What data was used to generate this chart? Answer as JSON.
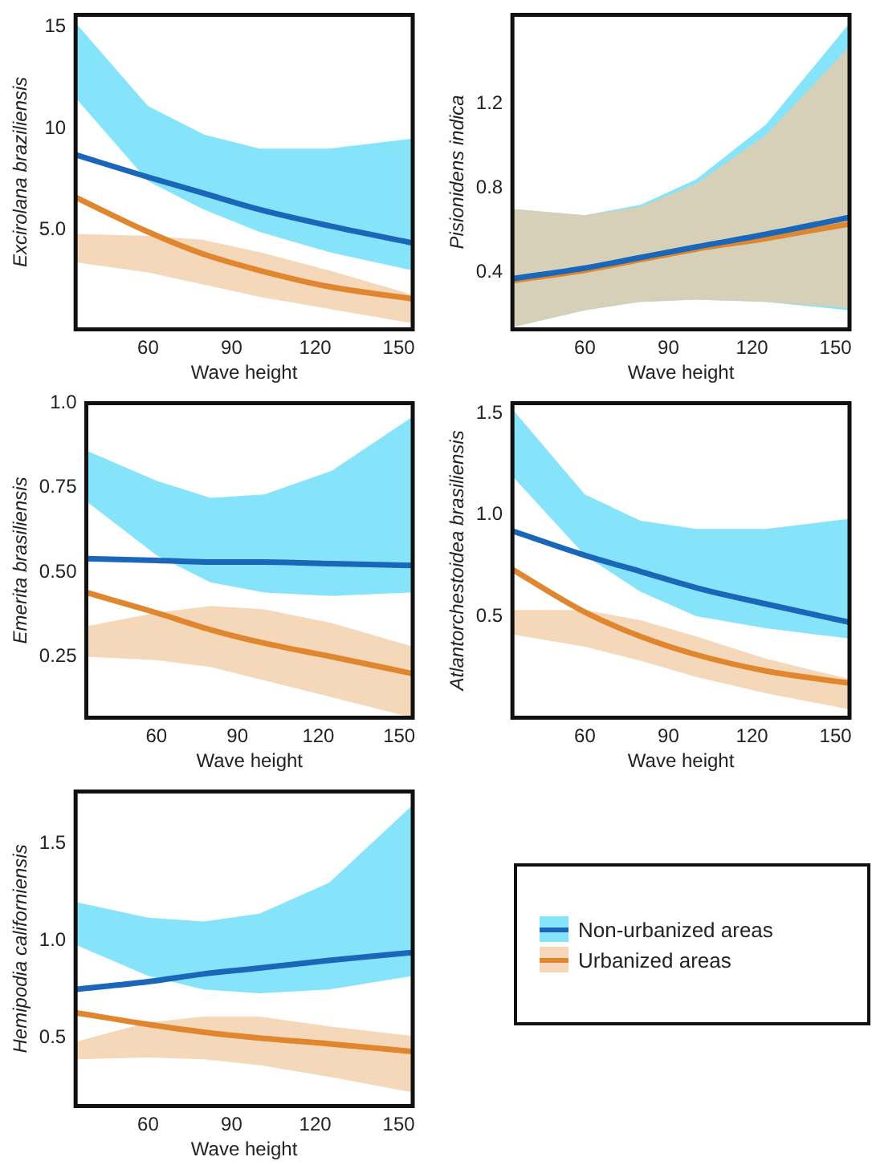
{
  "chart_data": [
    {
      "type": "line",
      "xlabel": "Wave height",
      "ylabel": "Excirolana braziliensis",
      "x": [
        34,
        60,
        80,
        100,
        125,
        155
      ],
      "xlim": [
        34,
        155
      ],
      "xticks": [
        60,
        90,
        120,
        150
      ],
      "ylim": [
        0.1,
        15.6
      ],
      "yticks": [
        {
          "value": 5,
          "label": "5.0"
        },
        10,
        15
      ],
      "grid": false,
      "legend": "bottom right",
      "line_style": "solid",
      "marker": "none",
      "series": [
        {
          "name": "Non-urbanized areas",
          "color": "#1a66b8",
          "values": [
            8.7,
            7.6,
            6.8,
            6.0,
            5.2,
            4.35
          ],
          "lower": [
            11.5,
            7.4,
            6.0,
            4.9,
            3.9,
            3.0
          ],
          "upper": [
            15.2,
            11.1,
            9.7,
            9.0,
            9.0,
            9.5
          ]
        },
        {
          "name": "Urbanized areas",
          "color": "#e0862e",
          "values": [
            6.6,
            4.9,
            3.8,
            3.0,
            2.2,
            1.6
          ],
          "lower": [
            3.4,
            2.9,
            2.3,
            1.7,
            1.1,
            0.4
          ],
          "upper": [
            4.8,
            4.7,
            4.5,
            3.9,
            3.0,
            1.8
          ]
        }
      ]
    },
    {
      "type": "line",
      "xlabel": "Wave height",
      "ylabel": "Pisionidens indica",
      "x": [
        34,
        60,
        80,
        100,
        125,
        155
      ],
      "xlim": [
        34,
        155
      ],
      "xticks": [
        60,
        90,
        120,
        150
      ],
      "ylim": [
        0.13,
        1.62
      ],
      "yticks": [
        0.4,
        0.8,
        1.2
      ],
      "grid": false,
      "legend": false,
      "line_style": "solid",
      "marker": "none",
      "series": [
        {
          "color": "#1a66b8",
          "values": [
            0.37,
            0.42,
            0.47,
            0.52,
            0.58,
            0.66
          ],
          "lower": [
            0.14,
            0.22,
            0.26,
            0.27,
            0.26,
            0.22
          ],
          "upper": [
            0.7,
            0.67,
            0.72,
            0.84,
            1.1,
            1.58
          ]
        },
        {
          "color": "#e0862e",
          "values": [
            0.36,
            0.41,
            0.46,
            0.51,
            0.56,
            0.63
          ],
          "lower": [
            0.14,
            0.22,
            0.26,
            0.27,
            0.26,
            0.23
          ],
          "upper": [
            0.7,
            0.67,
            0.71,
            0.82,
            1.05,
            1.47
          ]
        }
      ]
    },
    {
      "type": "line",
      "xlabel": "Wave height",
      "ylabel": "Emerita brasiliensis",
      "x": [
        34,
        60,
        80,
        100,
        125,
        155
      ],
      "xlim": [
        34,
        155
      ],
      "xticks": [
        60,
        90,
        120,
        150
      ],
      "ylim": [
        0.07,
        1.0
      ],
      "yticks": [
        {
          "value": 0.25,
          "label": "0.25"
        },
        {
          "value": 0.5,
          "label": "0.50"
        },
        {
          "value": 0.75,
          "label": "0.75"
        },
        {
          "value": 1,
          "label": "1.0"
        }
      ],
      "grid": false,
      "legend": false,
      "line_style": "solid",
      "marker": "none",
      "series": [
        {
          "color": "#1a66b8",
          "values": [
            0.54,
            0.535,
            0.53,
            0.53,
            0.525,
            0.52
          ],
          "lower": [
            0.71,
            0.55,
            0.47,
            0.44,
            0.43,
            0.44
          ],
          "upper": [
            0.86,
            0.77,
            0.72,
            0.73,
            0.8,
            0.96
          ]
        },
        {
          "color": "#e0862e",
          "values": [
            0.44,
            0.38,
            0.33,
            0.29,
            0.25,
            0.2
          ],
          "lower": [
            0.25,
            0.24,
            0.22,
            0.18,
            0.13,
            0.07
          ],
          "upper": [
            0.34,
            0.38,
            0.4,
            0.39,
            0.35,
            0.28
          ]
        }
      ]
    },
    {
      "type": "line",
      "xlabel": "Wave height",
      "ylabel": "Atlantorchestoidea brasiliensis",
      "x": [
        34,
        60,
        80,
        100,
        125,
        155
      ],
      "xlim": [
        34,
        155
      ],
      "xticks": [
        60,
        90,
        120,
        150
      ],
      "ylim": [
        0,
        1.55
      ],
      "yticks": [
        0.5,
        {
          "value": 1,
          "label": "1.0"
        },
        1.5
      ],
      "grid": false,
      "legend": false,
      "line_style": "solid",
      "marker": "none",
      "series": [
        {
          "color": "#1a66b8",
          "values": [
            0.92,
            0.8,
            0.72,
            0.64,
            0.56,
            0.47
          ],
          "lower": [
            1.19,
            0.8,
            0.62,
            0.5,
            0.44,
            0.39
          ],
          "upper": [
            1.52,
            1.1,
            0.97,
            0.93,
            0.93,
            0.98
          ]
        },
        {
          "color": "#e0862e",
          "values": [
            0.73,
            0.52,
            0.4,
            0.31,
            0.23,
            0.17
          ],
          "lower": [
            0.41,
            0.35,
            0.28,
            0.2,
            0.12,
            0.04
          ],
          "upper": [
            0.53,
            0.53,
            0.48,
            0.4,
            0.29,
            0.19
          ]
        }
      ]
    },
    {
      "type": "line",
      "xlabel": "Wave height",
      "ylabel": "Hemipodia californiensis",
      "x": [
        34,
        60,
        80,
        100,
        125,
        155
      ],
      "xlim": [
        34,
        155
      ],
      "xticks": [
        60,
        90,
        120,
        150
      ],
      "ylim": [
        0.15,
        1.77
      ],
      "yticks": [
        0.5,
        {
          "value": 1,
          "label": "1.0"
        },
        1.5
      ],
      "grid": false,
      "legend": false,
      "line_style": "solid",
      "marker": "none",
      "series": [
        {
          "color": "#1a66b8",
          "values": [
            0.75,
            0.79,
            0.83,
            0.86,
            0.9,
            0.94
          ],
          "lower": [
            0.98,
            0.82,
            0.75,
            0.73,
            0.75,
            0.82
          ],
          "upper": [
            1.2,
            1.12,
            1.1,
            1.14,
            1.3,
            1.7
          ]
        },
        {
          "color": "#e0862e",
          "values": [
            0.63,
            0.57,
            0.53,
            0.5,
            0.47,
            0.43
          ],
          "lower": [
            0.39,
            0.4,
            0.39,
            0.36,
            0.3,
            0.22
          ],
          "upper": [
            0.48,
            0.58,
            0.61,
            0.61,
            0.56,
            0.51
          ]
        }
      ]
    }
  ]
}
